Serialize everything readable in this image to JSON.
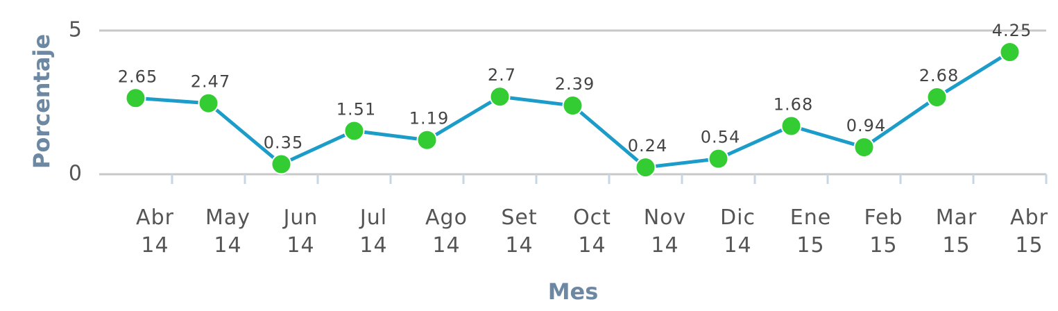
{
  "chart_data": {
    "type": "line",
    "x_label": "Mes",
    "y_label": "Porcentaje",
    "categories": [
      "Abr 14",
      "May 14",
      "Jun 14",
      "Jul 14",
      "Ago 14",
      "Set 14",
      "Oct 14",
      "Nov 14",
      "Dic 14",
      "Ene 15",
      "Feb 15",
      "Mar 15",
      "Abr 15"
    ],
    "series": [
      {
        "name": "Porcentaje",
        "color": "#1c9cc8",
        "marker_color": "#33cc33",
        "values": [
          2.65,
          2.47,
          0.35,
          1.51,
          1.19,
          2.7,
          2.39,
          0.24,
          0.54,
          1.68,
          0.94,
          2.68,
          4.25
        ]
      }
    ],
    "ylim": [
      0,
      5
    ],
    "yticks": [
      0,
      5
    ],
    "grid": true
  }
}
